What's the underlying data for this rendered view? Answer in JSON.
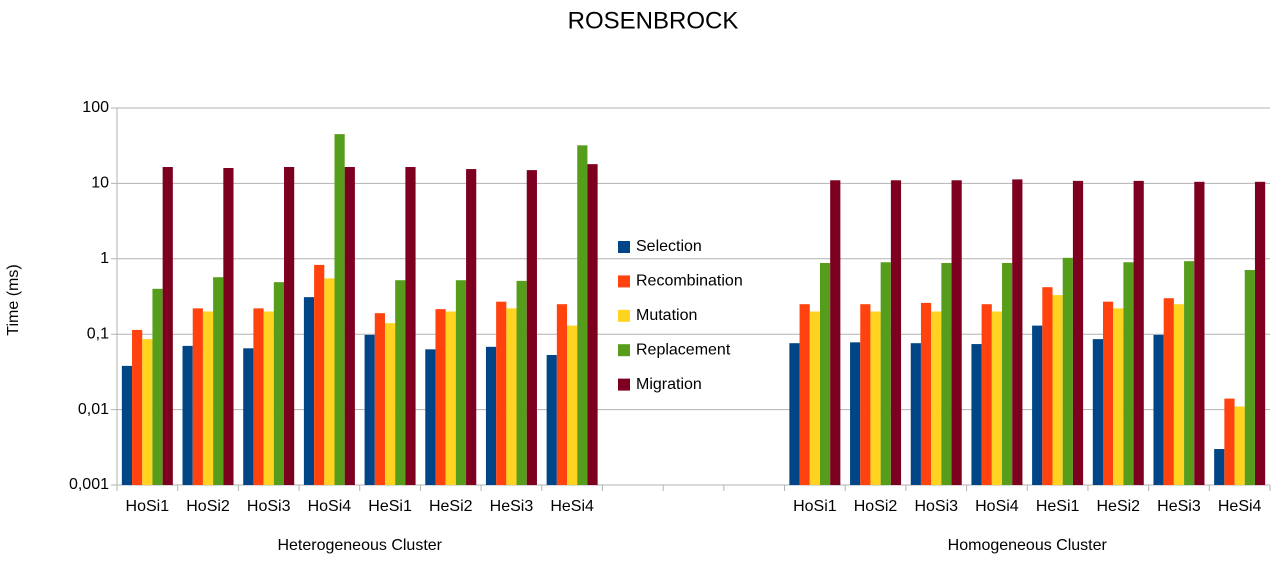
{
  "chart_data": {
    "type": "bar",
    "title": "ROSENBROCK",
    "y_label": "Time (ms)",
    "log_scale": true,
    "grid": true,
    "legend": "center",
    "categories": [
      "HoSi1",
      "HoSi2",
      "HoSi3",
      "HoSi4",
      "HeSi1",
      "HeSi2",
      "HeSi3",
      "HeSi4",
      null,
      null,
      null,
      "HoSi1",
      "HoSi2",
      "HoSi3",
      "HoSi4",
      "HeSi1",
      "HeSi2",
      "HeSi3",
      "HeSi4"
    ],
    "groups": [
      "Heterogeneous Cluster",
      "Homogeneous Cluster"
    ],
    "series": [
      {
        "name": "Selection",
        "color": "#004586",
        "values": [
          0.038,
          0.07,
          0.065,
          0.31,
          0.098,
          0.063,
          0.068,
          0.053,
          null,
          null,
          null,
          0.076,
          0.078,
          0.076,
          0.074,
          0.13,
          0.086,
          0.098,
          0.003
        ]
      },
      {
        "name": "Recombination",
        "color": "#ff420e",
        "values": [
          0.114,
          0.22,
          0.22,
          0.83,
          0.19,
          0.215,
          0.27,
          0.25,
          null,
          null,
          null,
          0.25,
          0.25,
          0.26,
          0.25,
          0.42,
          0.27,
          0.3,
          0.014
        ]
      },
      {
        "name": "Mutation",
        "color": "#ffd320",
        "values": [
          0.086,
          0.2,
          0.2,
          0.55,
          0.14,
          0.2,
          0.22,
          0.13,
          null,
          null,
          null,
          0.2,
          0.2,
          0.2,
          0.2,
          0.33,
          0.22,
          0.25,
          0.011
        ]
      },
      {
        "name": "Replacement",
        "color": "#579d1c",
        "values": [
          0.4,
          0.57,
          0.49,
          45,
          0.52,
          0.52,
          0.51,
          32,
          null,
          null,
          null,
          0.88,
          0.9,
          0.88,
          0.88,
          1.03,
          0.9,
          0.93,
          0.71
        ]
      },
      {
        "name": "Migration",
        "color": "#7e0021",
        "values": [
          16.5,
          16,
          16.5,
          16.5,
          16.5,
          15.5,
          15,
          18,
          null,
          null,
          null,
          11,
          11,
          11,
          11.3,
          10.8,
          10.8,
          10.5,
          10.5
        ]
      }
    ],
    "ylim": [
      0.001,
      100
    ],
    "yticks": [
      {
        "value": 0.001,
        "label": "0,001"
      },
      {
        "value": 0.01,
        "label": "0,01"
      },
      {
        "value": 0.1,
        "label": "0,1"
      },
      1,
      10,
      100
    ]
  }
}
